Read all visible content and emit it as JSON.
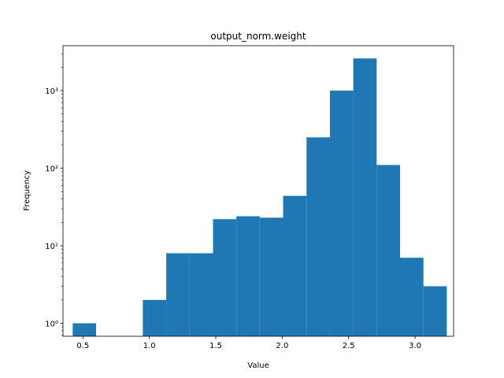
{
  "chart_data": {
    "type": "bar",
    "subtype": "histogram",
    "title": "output_norm.weight",
    "xlabel": "Value",
    "ylabel": "Frequency",
    "yscale": "log",
    "xlim": [
      0.35,
      3.29
    ],
    "ylim": [
      0.68,
      3800
    ],
    "x_ticks": [
      0.5,
      1.0,
      1.5,
      2.0,
      2.5,
      3.0
    ],
    "x_tick_labels": [
      "0.5",
      "1.0",
      "1.5",
      "2.0",
      "2.5",
      "3.0"
    ],
    "y_ticks": [
      1,
      10,
      100,
      1000
    ],
    "y_tick_labels": [
      "10⁰",
      "10¹",
      "10²",
      "10³"
    ],
    "bin_edges": [
      0.423,
      0.599,
      0.775,
      0.951,
      1.127,
      1.303,
      1.479,
      1.655,
      1.831,
      2.007,
      2.183,
      2.359,
      2.535,
      2.711,
      2.887,
      3.063,
      3.239
    ],
    "counts": [
      1,
      0,
      0,
      2,
      8,
      8,
      22,
      24,
      23,
      44,
      250,
      1000,
      2600,
      110,
      7,
      3
    ],
    "color": "#1f77b4",
    "grid": false,
    "legend": "none"
  }
}
